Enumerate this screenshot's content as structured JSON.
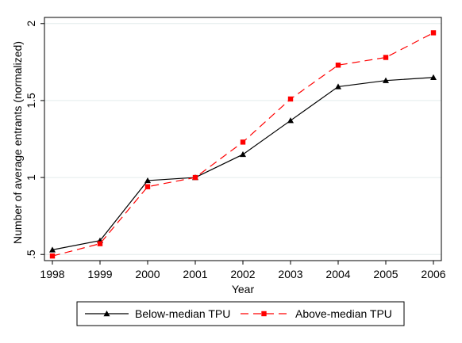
{
  "chart_data": {
    "type": "line",
    "xlabel": "Year",
    "ylabel": "Number of average entrants (normalized)",
    "x": [
      1998,
      1999,
      2000,
      2001,
      2002,
      2003,
      2004,
      2005,
      2006
    ],
    "xticks": [
      "1998",
      "1999",
      "2000",
      "2001",
      "2002",
      "2003",
      "2004",
      "2005",
      "2006"
    ],
    "yticks": [
      {
        "value": 0.5,
        "label": ".5"
      },
      {
        "value": 1,
        "label": "1"
      },
      {
        "value": 1.5,
        "label": "1.5"
      },
      {
        "value": 2,
        "label": "2"
      }
    ],
    "xlim": [
      1998,
      2006
    ],
    "ylim": [
      0.46,
      2.04
    ],
    "grid": true,
    "legend_position": "bottom",
    "series": [
      {
        "name": "Below-median TPU",
        "values": [
          0.53,
          0.59,
          0.98,
          1.0,
          1.15,
          1.37,
          1.59,
          1.63,
          1.65
        ],
        "color": "#000000",
        "marker": "triangle",
        "dash": "solid"
      },
      {
        "name": "Above-median TPU",
        "values": [
          0.49,
          0.57,
          0.94,
          1.0,
          1.23,
          1.51,
          1.73,
          1.78,
          1.94
        ],
        "color": "#ff0000",
        "marker": "square",
        "dash": "dashed"
      }
    ]
  }
}
